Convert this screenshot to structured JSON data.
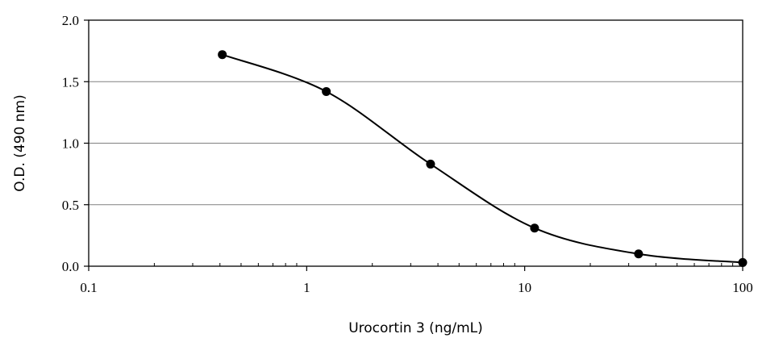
{
  "chart_data": {
    "type": "line",
    "title": "",
    "xlabel": "Urocortin 3 (ng/mL)",
    "ylabel": "O.D. (490 nm)",
    "xscale": "log",
    "xlim": [
      0.1,
      100
    ],
    "ylim": [
      0,
      2.0
    ],
    "grid": "horizontal",
    "legend": "none",
    "x_ticks": [
      "0.1",
      "1",
      "10",
      "100"
    ],
    "y_ticks": [
      "0.0",
      "0.5",
      "1.0",
      "1.5",
      "2.0"
    ],
    "series": [
      {
        "x": [
          0.41,
          1.23,
          3.7,
          11.1,
          33.3,
          100
        ],
        "y": [
          1.72,
          1.42,
          0.83,
          0.31,
          0.1,
          0.03
        ]
      }
    ],
    "colors": {
      "line": "#000000",
      "marker": "#000000",
      "grid": "#808080",
      "frame": "#000000"
    }
  }
}
